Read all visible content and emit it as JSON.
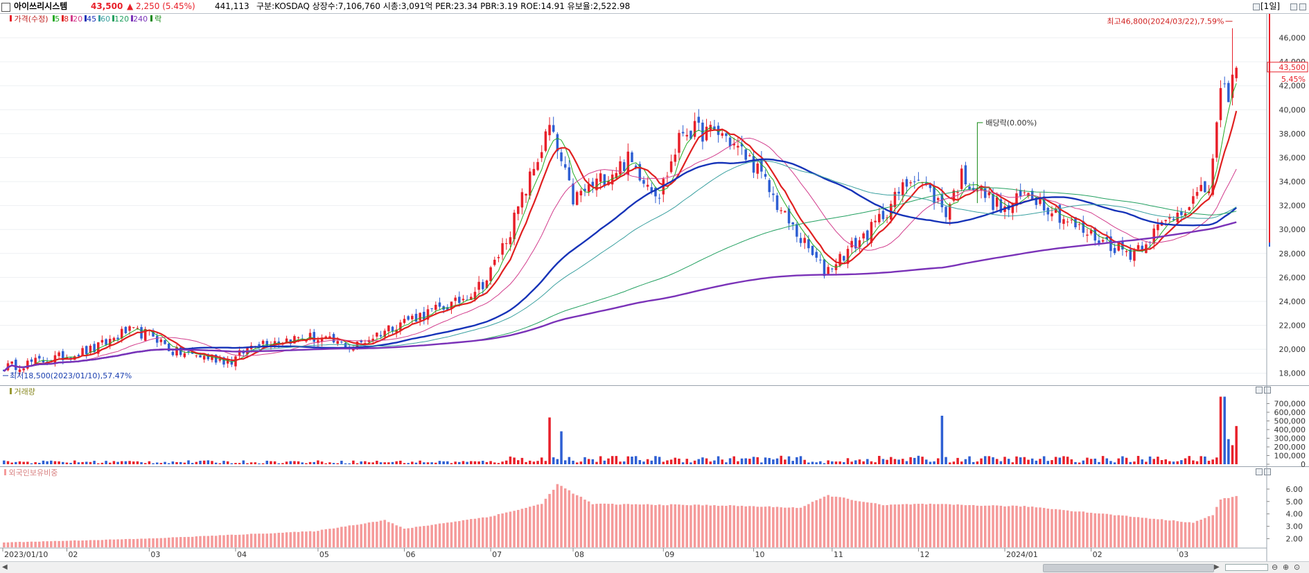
{
  "header": {
    "name": "아이쓰리시스템",
    "price": "43,500",
    "change": "▲ 2,250 (5.45%)",
    "volume": "441,113",
    "info": "구분:KOSDAQ 상장수:7,106,760 시총:3,091억 PER:23.34 PBR:3.19 ROE:14.91 유보율:2,522.98",
    "period_btn": "[1일]"
  },
  "legend": {
    "price_label": "가격(수정)",
    "ma": [
      {
        "label": "5",
        "color": "#22aa22"
      },
      {
        "label": "8",
        "color": "#e02020"
      },
      {
        "label": "20",
        "color": "#d23c8c"
      },
      {
        "label": "45",
        "color": "#1633b8"
      },
      {
        "label": "60",
        "color": "#3aa0a0"
      },
      {
        "label": "120",
        "color": "#22a060"
      },
      {
        "label": "240",
        "color": "#7a32b8"
      }
    ],
    "ex_label": "락",
    "volume_label": "거래량",
    "foreign_label": "외국인보유비중"
  },
  "colors": {
    "up": "#e8202a",
    "down": "#2e5fd3",
    "foreign": "#f59a9a"
  },
  "chart_data": {
    "type": "candlestick",
    "y_axis": {
      "min": 17000,
      "max": 48000,
      "ticks": [
        18000,
        20000,
        22000,
        24000,
        26000,
        28000,
        30000,
        32000,
        34000,
        36000,
        38000,
        40000,
        42000,
        44000,
        46000
      ]
    },
    "y_tick_labels": [
      "18,000",
      "20,000",
      "22,000",
      "24,000",
      "26,000",
      "28,000",
      "30,000",
      "32,000",
      "34,000",
      "36,000",
      "38,000",
      "40,000",
      "42,000",
      "44,000",
      "46,000"
    ],
    "x_labels": [
      "2023/01/10",
      "02",
      "03",
      "04",
      "05",
      "06",
      "07",
      "08",
      "09",
      "10",
      "11",
      "12",
      "2024/01",
      "02",
      "03"
    ],
    "x_label_dates": [
      "2023-01-10",
      "2023-02-01",
      "2023-03-02",
      "2023-04-03",
      "2023-05-02",
      "2023-06-01",
      "2023-07-03",
      "2023-08-01",
      "2023-09-01",
      "2023-10-04",
      "2023-11-01",
      "2023-12-01",
      "2024-01-02",
      "2024-02-01",
      "2024-03-04"
    ],
    "anchors": [
      [
        "2023-01-10",
        18500
      ],
      [
        "2023-01-25",
        19100
      ],
      [
        "2023-02-10",
        20000
      ],
      [
        "2023-02-22",
        21500
      ],
      [
        "2023-03-03",
        21200
      ],
      [
        "2023-03-10",
        19800
      ],
      [
        "2023-03-31",
        19000
      ],
      [
        "2023-04-10",
        20600
      ],
      [
        "2023-04-28",
        21000
      ],
      [
        "2023-05-15",
        20200
      ],
      [
        "2023-05-31",
        22300
      ],
      [
        "2023-06-20",
        23800
      ],
      [
        "2023-06-30",
        25800
      ],
      [
        "2023-07-10",
        30000
      ],
      [
        "2023-07-24",
        38500
      ],
      [
        "2023-08-01",
        32500
      ],
      [
        "2023-08-20",
        35800
      ],
      [
        "2023-08-31",
        33000
      ],
      [
        "2023-09-08",
        38300
      ],
      [
        "2023-09-22",
        38000
      ],
      [
        "2023-10-04",
        35500
      ],
      [
        "2023-10-16",
        31000
      ],
      [
        "2023-10-30",
        26500
      ],
      [
        "2023-11-15",
        30000
      ],
      [
        "2023-11-30",
        34700
      ],
      [
        "2023-12-12",
        31500
      ],
      [
        "2023-12-18",
        34500
      ],
      [
        "2024-01-02",
        31500
      ],
      [
        "2024-01-10",
        33200
      ],
      [
        "2024-01-29",
        30000
      ],
      [
        "2024-02-15",
        28000
      ],
      [
        "2024-03-04",
        31500
      ],
      [
        "2024-03-14",
        33500
      ],
      [
        "2024-03-19",
        41000
      ],
      [
        "2024-03-21",
        41500
      ],
      [
        "2024-03-25",
        43500
      ]
    ],
    "ma_series": [
      {
        "name": "5",
        "color": "#22aa22",
        "width": 1.0
      },
      {
        "name": "8",
        "color": "#e02020",
        "width": 2.2
      },
      {
        "name": "20",
        "color": "#d23c8c",
        "width": 1.0
      },
      {
        "name": "45",
        "color": "#1633b8",
        "width": 2.4
      },
      {
        "name": "60",
        "color": "#3aa0a0",
        "width": 1.0
      },
      {
        "name": "120",
        "color": "#22a060",
        "width": 1.0
      },
      {
        "name": "240",
        "color": "#7a32b8",
        "width": 2.4
      }
    ],
    "last": {
      "price_label": "43,500",
      "pct_label": "5.45%"
    },
    "annotations": {
      "high": "최고46,800(2024/03/22),7.59%",
      "high_value": 46800,
      "low": "최저18,500(2023/01/10),57.47%",
      "low_value": 18500,
      "dividend": "배당락(0.00%)"
    },
    "volume": {
      "ticks": [
        0,
        100000,
        200000,
        300000,
        400000,
        500000,
        600000,
        700000
      ],
      "tick_labels": [
        "0",
        "100,000",
        "200,000",
        "300,000",
        "400,000",
        "500,000",
        "600,000",
        "700,000"
      ],
      "max": 800000,
      "spikes": [
        [
          "2023-07-24",
          540000
        ],
        [
          "2023-07-27",
          380000
        ],
        [
          "2023-12-11",
          560000
        ],
        [
          "2024-03-19",
          780000
        ],
        [
          "2024-03-20",
          780000
        ],
        [
          "2024-03-21",
          290000
        ],
        [
          "2024-03-22",
          220000
        ],
        [
          "2024-03-25",
          441113
        ]
      ]
    },
    "foreign": {
      "ticks": [
        2,
        3,
        4,
        5,
        6
      ],
      "tick_labels": [
        "2.00",
        "3.00",
        "4.00",
        "5.00",
        "6.00"
      ],
      "min": 1.3,
      "max": 7.0,
      "anchors": [
        [
          "2023-01-10",
          1.7
        ],
        [
          "2023-03-01",
          2.0
        ],
        [
          "2023-05-01",
          2.6
        ],
        [
          "2023-05-25",
          3.5
        ],
        [
          "2023-06-01",
          2.8
        ],
        [
          "2023-07-03",
          3.8
        ],
        [
          "2023-07-20",
          4.8
        ],
        [
          "2023-07-26",
          6.4
        ],
        [
          "2023-08-08",
          4.8
        ],
        [
          "2023-09-20",
          4.7
        ],
        [
          "2023-10-20",
          4.5
        ],
        [
          "2023-10-31",
          5.5
        ],
        [
          "2023-11-20",
          4.7
        ],
        [
          "2023-12-01",
          4.8
        ],
        [
          "2024-01-10",
          4.6
        ],
        [
          "2024-02-01",
          4.1
        ],
        [
          "2024-03-08",
          3.3
        ],
        [
          "2024-03-15",
          3.9
        ],
        [
          "2024-03-19",
          5.2
        ],
        [
          "2024-03-25",
          5.4
        ]
      ]
    }
  }
}
